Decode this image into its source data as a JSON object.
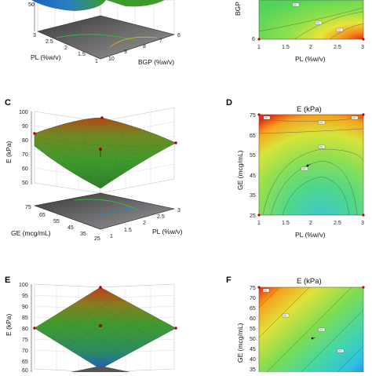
{
  "panels": {
    "A": {
      "label": ""
    },
    "B": {
      "label": ""
    },
    "C": {
      "label": "C"
    },
    "D": {
      "label": "D"
    },
    "E": {
      "label": "E"
    },
    "F": {
      "label": "F"
    }
  },
  "colors": {
    "surface_top": "#c23a1a",
    "surface_mid": "#3f9b2c",
    "surface_low": "#1c5fc4",
    "contour_hot": "#e53b10",
    "contour_cool": "#36c6d8"
  },
  "chart_data": [
    {
      "panel": "A",
      "type": "surface",
      "title": "",
      "zlabel": "",
      "z_ticks": [
        "50"
      ],
      "xlabel": "PL (%w/v)",
      "x_ticks": [
        "3",
        "2.5",
        "2",
        "1.5",
        "1"
      ],
      "ylabel": "BGP (%w/v)",
      "y_ticks": [
        "6",
        "7",
        "8",
        "9",
        "10"
      ],
      "visible_fraction": "bottom portion only (cropped at top)"
    },
    {
      "panel": "B",
      "type": "heatmap",
      "title": "",
      "xlabel": "PL (%w/v)",
      "x_ticks": [
        "1",
        "1.5",
        "2",
        "2.5",
        "3"
      ],
      "xlim": [
        1,
        3
      ],
      "ylabel": "BGP (%w/v)",
      "y_ticks": [
        "6"
      ],
      "ylim_visible": [
        6,
        7
      ],
      "contour_labels": [
        "??",
        "??",
        "??"
      ],
      "high_region": "bottom-right"
    },
    {
      "panel": "C",
      "type": "surface",
      "title": "",
      "zlabel": "E (kPa)",
      "z_ticks": [
        "100",
        "90",
        "80",
        "70",
        "60",
        "50"
      ],
      "zlim": [
        50,
        100
      ],
      "xlabel": "GE (mcg/mL)",
      "x_ticks": [
        "75",
        "65",
        "55",
        "45",
        "35",
        "25"
      ],
      "ylabel": "PL (%w/v)",
      "y_ticks": [
        "1",
        "1.5",
        "2",
        "2.5",
        "3"
      ],
      "shape": "saddle/bowl, highest at GE=75 corners, minimum near center"
    },
    {
      "panel": "D",
      "type": "heatmap",
      "title": "E (kPa)",
      "xlabel": "PL (%w/v)",
      "x_ticks": [
        "1",
        "1.5",
        "2",
        "2.5",
        "3"
      ],
      "xlim": [
        1,
        3
      ],
      "ylabel": "GE (mcg/mL)",
      "y_ticks": [
        "75",
        "65",
        "55",
        "45",
        "35",
        "25"
      ],
      "ylim": [
        25,
        75
      ],
      "contour_labels": [
        "??",
        "??",
        "??",
        "??",
        "??"
      ],
      "high_region": "top edge (GE = 75)",
      "low_region": "bottom-center"
    },
    {
      "panel": "E",
      "type": "surface",
      "title": "",
      "zlabel": "E (kPa)",
      "z_ticks": [
        "100",
        "95",
        "90",
        "85",
        "80",
        "75",
        "70",
        "65",
        "60"
      ],
      "zlim": [
        60,
        100
      ],
      "shape": "plane tilted, highest at back corner, lowest at front corner"
    },
    {
      "panel": "F",
      "type": "heatmap",
      "title": "E (kPa)",
      "ylabel": "GE (mcg/mL)",
      "y_ticks": [
        "75",
        "70",
        "65",
        "60",
        "55",
        "50",
        "45",
        "40",
        "35"
      ],
      "ylim_visible": [
        35,
        75
      ],
      "contour_labels": [
        "??",
        "??",
        "??",
        "??"
      ],
      "high_region": "top-left",
      "low_region": "bottom-right"
    }
  ]
}
